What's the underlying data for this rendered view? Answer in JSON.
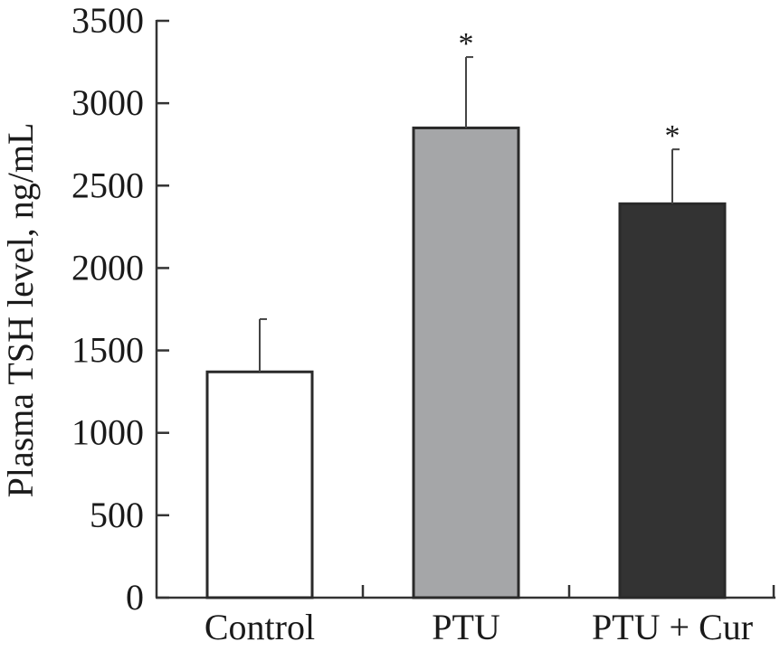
{
  "chart_data": {
    "type": "bar",
    "title": "",
    "xlabel": "",
    "ylabel": "Plasma TSH level, ng/mL",
    "ylim": [
      0,
      3500
    ],
    "yticks": [
      0,
      500,
      1000,
      1500,
      2000,
      2500,
      3000,
      3500
    ],
    "categories": [
      "Control",
      "PTU",
      "PTU + Cur"
    ],
    "values": [
      1370,
      2850,
      2390
    ],
    "errors": [
      320,
      430,
      330
    ],
    "significance": [
      "",
      "*",
      "*"
    ],
    "bar_colors": [
      "#ffffff",
      "#a5a6a8",
      "#333333"
    ],
    "grid": false,
    "legend": "none"
  }
}
